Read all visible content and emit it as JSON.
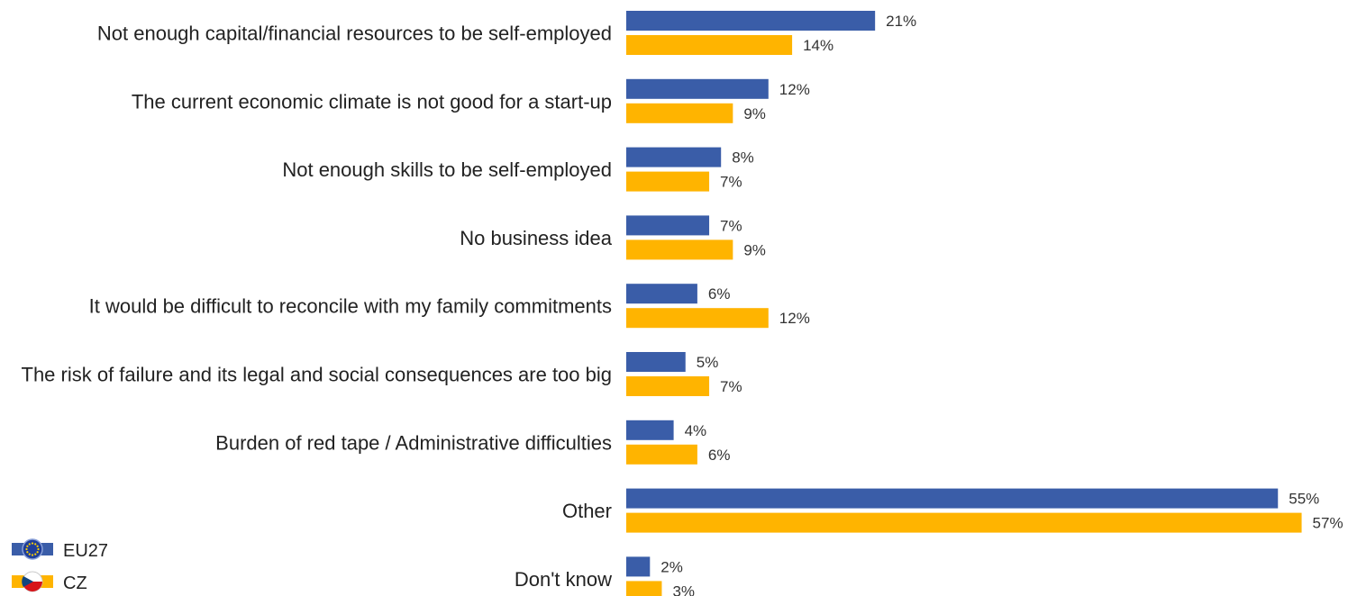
{
  "chart_data": {
    "type": "bar",
    "orientation": "horizontal",
    "categories": [
      "Not enough capital/financial resources to be self-employed",
      "The current economic climate is not good for a start-up",
      "Not enough skills to be self-employed",
      "No business idea",
      "It would be difficult to reconcile with my family commitments",
      "The risk of failure and its legal and social consequences are too big",
      "Burden of red tape / Administrative difficulties",
      "Other",
      "Don't know"
    ],
    "series": [
      {
        "name": "EU27",
        "color": "#3A5DA8",
        "icon": "eu-flag-icon",
        "values": [
          21,
          12,
          8,
          7,
          6,
          5,
          4,
          55,
          2
        ],
        "labels": [
          "21%",
          "12%",
          "8%",
          "7%",
          "6%",
          "5%",
          "4%",
          "55%",
          "2%"
        ]
      },
      {
        "name": "CZ",
        "color": "#FFB400",
        "icon": "czech-flag-icon",
        "values": [
          14,
          9,
          7,
          9,
          12,
          7,
          6,
          57,
          3
        ],
        "labels": [
          "14%",
          "9%",
          "7%",
          "9%",
          "12%",
          "7%",
          "6%",
          "57%",
          "3%"
        ]
      }
    ],
    "unit": "%",
    "xlim": [
      0,
      57
    ],
    "grid": false,
    "legend_position": "bottom-left"
  },
  "legend": {
    "items": [
      {
        "label": "EU27",
        "icon": "eu-flag-icon"
      },
      {
        "label": "CZ",
        "icon": "czech-flag-icon"
      }
    ]
  }
}
